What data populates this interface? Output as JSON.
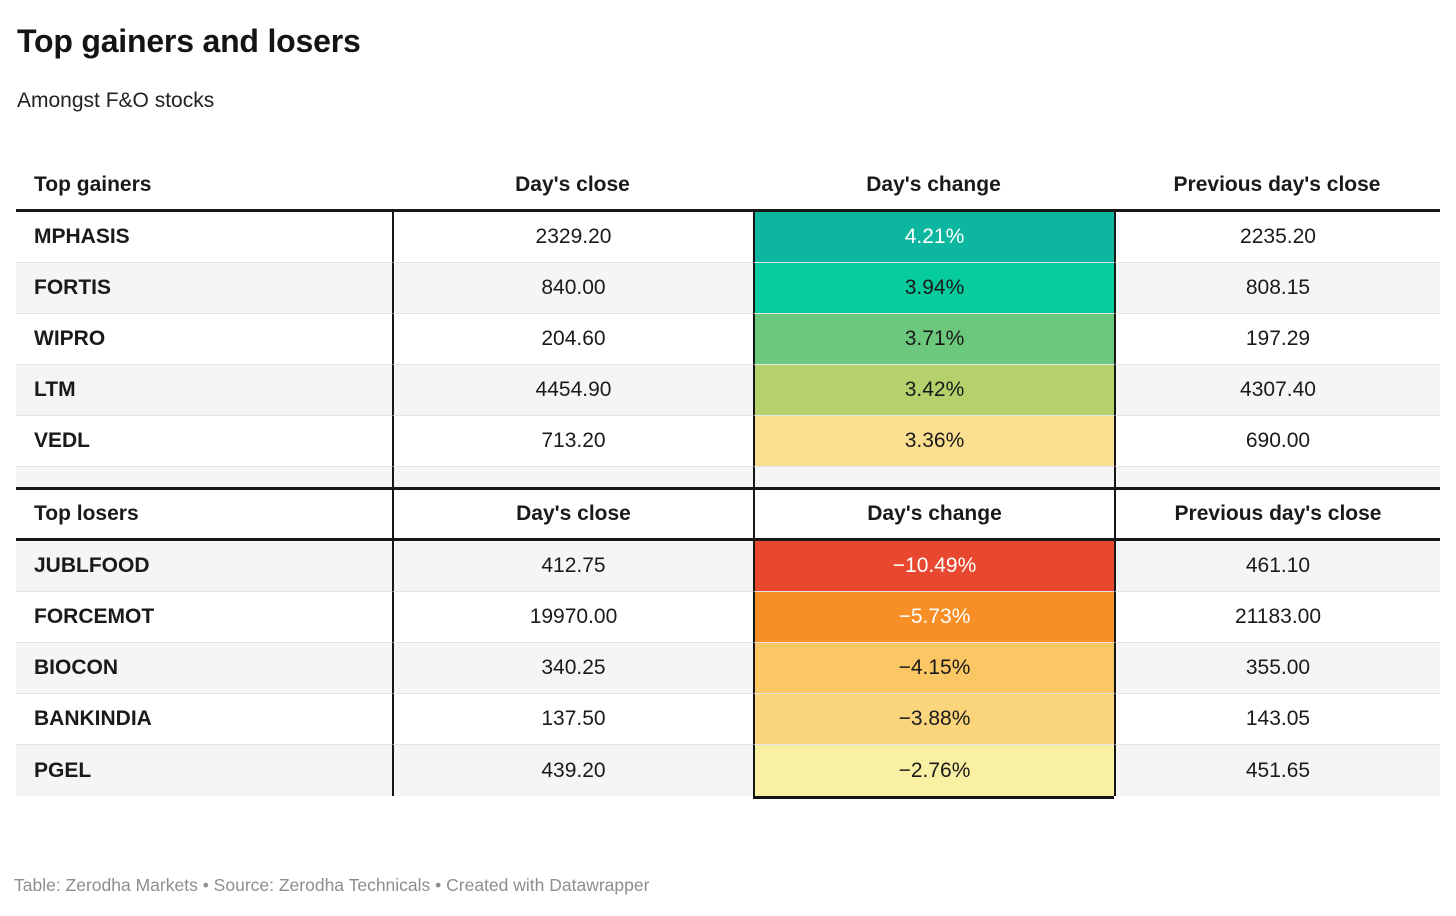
{
  "header": {
    "title": "Top gainers and losers",
    "subtitle": "Amongst F&O stocks"
  },
  "gainers": {
    "columns": {
      "name": "Top gainers",
      "close": "Day's close",
      "change": "Day's change",
      "prev": "Previous day's close"
    },
    "rows": [
      {
        "name": "MPHASIS",
        "close": "2329.20",
        "change": "4.21%",
        "prev": "2235.20",
        "change_bg": "#0db69e",
        "change_fg": "#ffffff"
      },
      {
        "name": "FORTIS",
        "close": "840.00",
        "change": "3.94%",
        "prev": "808.15",
        "change_bg": "#06cb9c",
        "change_fg": "#1a1a1a"
      },
      {
        "name": "WIPRO",
        "close": "204.60",
        "change": "3.71%",
        "prev": "197.29",
        "change_bg": "#6bc87d",
        "change_fg": "#1a1a1a"
      },
      {
        "name": "LTM",
        "close": "4454.90",
        "change": "3.42%",
        "prev": "4307.40",
        "change_bg": "#b4d16c",
        "change_fg": "#1a1a1a"
      },
      {
        "name": "VEDL",
        "close": "713.20",
        "change": "3.36%",
        "prev": "690.00",
        "change_bg": "#fbdf90",
        "change_fg": "#1a1a1a"
      }
    ]
  },
  "losers": {
    "columns": {
      "name": "Top losers",
      "close": "Day's close",
      "change": "Day's change",
      "prev": "Previous day's close"
    },
    "rows": [
      {
        "name": "JUBLFOOD",
        "close": "412.75",
        "change": "−10.49%",
        "prev": "461.10",
        "change_bg": "#e8482f",
        "change_fg": "#ffffff"
      },
      {
        "name": "FORCEMOT",
        "close": "19970.00",
        "change": "−5.73%",
        "prev": "21183.00",
        "change_bg": "#f78e26",
        "change_fg": "#ffffff"
      },
      {
        "name": "BIOCON",
        "close": "340.25",
        "change": "−4.15%",
        "prev": "355.00",
        "change_bg": "#fbc765",
        "change_fg": "#1a1a1a"
      },
      {
        "name": "BANKINDIA",
        "close": "137.50",
        "change": "−3.88%",
        "prev": "143.05",
        "change_bg": "#fad57c",
        "change_fg": "#1a1a1a"
      },
      {
        "name": "PGEL",
        "close": "439.20",
        "change": "−2.76%",
        "prev": "451.65",
        "change_bg": "#faf0a3",
        "change_fg": "#1a1a1a"
      }
    ]
  },
  "footer": {
    "text": "Table: Zerodha Markets • Source: Zerodha Technicals • Created with Datawrapper"
  },
  "colors": {
    "row_alt_bg": "#f5f5f5",
    "divider": "#161616",
    "separator": "#e4e4e4",
    "footer_text": "#8e8e8e"
  },
  "chart_data": [
    {
      "type": "table",
      "title": "Top gainers",
      "columns": [
        "Top gainers",
        "Day's close",
        "Day's change",
        "Previous day's close"
      ],
      "rows": [
        [
          "MPHASIS",
          2329.2,
          4.21,
          2235.2
        ],
        [
          "FORTIS",
          840.0,
          3.94,
          808.15
        ],
        [
          "WIPRO",
          204.6,
          3.71,
          197.29
        ],
        [
          "LTM",
          4454.9,
          3.42,
          4307.4
        ],
        [
          "VEDL",
          713.2,
          3.36,
          690.0
        ]
      ],
      "change_unit": "%",
      "heatmap_column": "Day's change",
      "heatmap_scale": "green (high) to yellow (low)"
    },
    {
      "type": "table",
      "title": "Top losers",
      "columns": [
        "Top losers",
        "Day's close",
        "Day's change",
        "Previous day's close"
      ],
      "rows": [
        [
          "JUBLFOOD",
          412.75,
          -10.49,
          461.1
        ],
        [
          "FORCEMOT",
          19970.0,
          -5.73,
          21183.0
        ],
        [
          "BIOCON",
          340.25,
          -4.15,
          355.0
        ],
        [
          "BANKINDIA",
          137.5,
          -3.88,
          143.05
        ],
        [
          "PGEL",
          439.2,
          -2.76,
          451.65
        ]
      ],
      "change_unit": "%",
      "heatmap_column": "Day's change",
      "heatmap_scale": "red (most negative) to pale yellow (least negative)"
    }
  ]
}
